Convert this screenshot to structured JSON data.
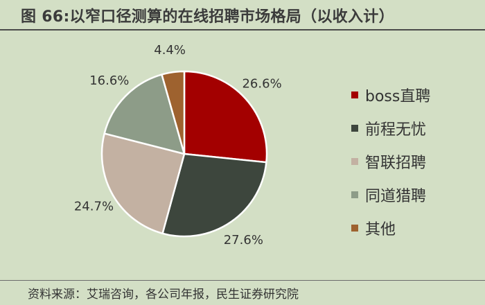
{
  "title": "图 66:以窄口径测算的在线招聘市场格局（以收入计）",
  "source": "资料来源：艾瑞咨询，各公司年报，民生证券研究院",
  "chart_data": {
    "type": "pie",
    "title": "图 66:以窄口径测算的在线招聘市场格局（以收入计）",
    "legend_position": "right",
    "slices": [
      {
        "name": "boss直聘",
        "value": 26.6,
        "label": "26.6%",
        "color": "#a30000"
      },
      {
        "name": "前程无忧",
        "value": 27.6,
        "label": "27.6%",
        "color": "#3d463d"
      },
      {
        "name": "智联招聘",
        "value": 24.7,
        "label": "24.7%",
        "color": "#c3b1a2"
      },
      {
        "name": "同道猎聘",
        "value": 16.6,
        "label": "16.6%",
        "color": "#8d9c88"
      },
      {
        "name": "其他",
        "value": 4.4,
        "label": "4.4%",
        "color": "#9e622f"
      }
    ]
  }
}
